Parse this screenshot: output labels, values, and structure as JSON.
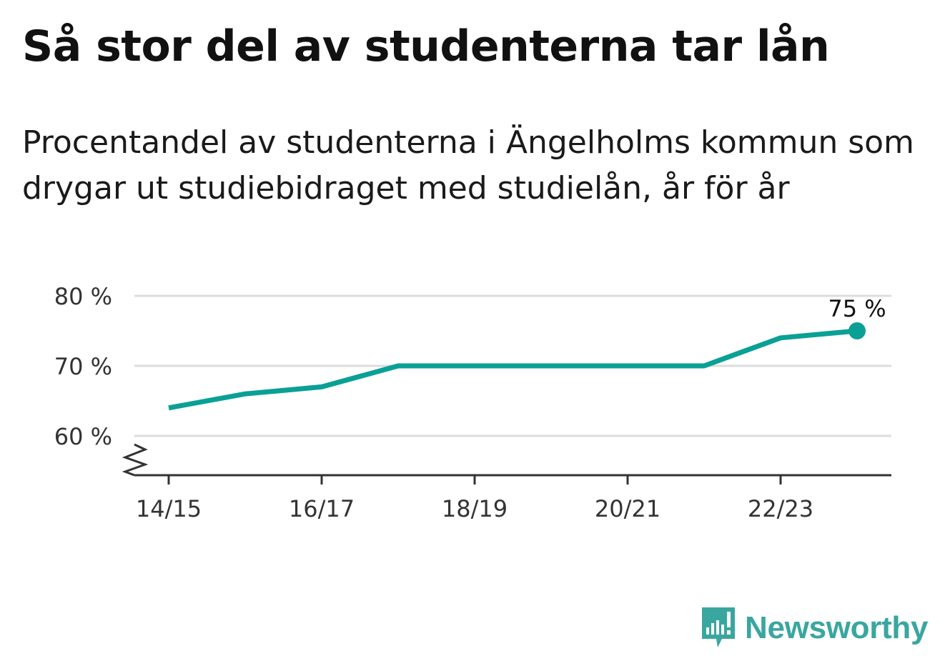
{
  "title": "Så stor del av studenterna tar lån",
  "subtitle": "Procentandel av studenterna i Ängelholms kommun som drygar ut studiebidraget med studielån, år för år",
  "chart_data": {
    "type": "line",
    "x": [
      "14/15",
      "15/16",
      "16/17",
      "17/18",
      "18/19",
      "19/20",
      "20/21",
      "21/22",
      "22/23",
      "23/24"
    ],
    "xticks": [
      "14/15",
      "16/17",
      "18/19",
      "20/21",
      "22/23"
    ],
    "series": [
      {
        "values": [
          64,
          66,
          67,
          70,
          70,
          70,
          70,
          70,
          74,
          75
        ],
        "color": "#0aa096"
      }
    ],
    "yticks": [
      60,
      70,
      80
    ],
    "ytick_labels": [
      "60 %",
      "70 %",
      "80 %"
    ],
    "ylim": [
      55,
      81
    ],
    "axis_break": true,
    "end_label": "75 %",
    "grid": true
  },
  "logo": {
    "text": "Newsworthy",
    "color": "#3aa6a0",
    "icon": "newsworthy-logo-icon"
  }
}
